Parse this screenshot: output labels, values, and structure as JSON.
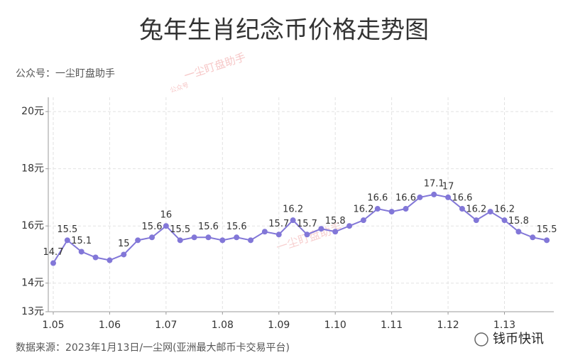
{
  "chart_data": {
    "type": "line",
    "title": "兔年生肖纪念币价格走势图",
    "subtitle": "公众号：一尘盯盘助手",
    "source": "数据来源：2023年1月13日/一尘网(亚洲最大邮币卡交易平台)",
    "watermarks": [
      "一尘盯盘助手",
      "公众号",
      "钱币快讯"
    ],
    "categories": [
      "1.05",
      null,
      null,
      null,
      "1.06",
      null,
      null,
      null,
      "1.07",
      null,
      null,
      null,
      "1.08",
      null,
      null,
      null,
      "1.09",
      null,
      null,
      null,
      "1.10",
      null,
      null,
      null,
      "1.11",
      null,
      null,
      null,
      "1.12",
      null,
      null,
      null,
      "1.13",
      null,
      null,
      null
    ],
    "series": [
      {
        "color": "#8277d8",
        "values": [
          14.7,
          15.5,
          15.1,
          14.9,
          14.8,
          15.0,
          15.5,
          15.6,
          16.0,
          15.5,
          15.6,
          15.6,
          15.5,
          15.6,
          15.5,
          15.8,
          15.7,
          16.2,
          15.7,
          15.9,
          15.8,
          16.0,
          16.2,
          16.6,
          16.5,
          16.6,
          17.0,
          17.1,
          17.0,
          16.6,
          16.2,
          16.5,
          16.2,
          15.8,
          15.6,
          15.5
        ],
        "value_labels": [
          "14.7",
          "15.5",
          "15.1",
          null,
          null,
          "15",
          null,
          "15.6",
          "16",
          "15.5",
          null,
          "15.6",
          null,
          "15.6",
          null,
          null,
          "15.7",
          "16.2",
          "15.7",
          null,
          "15.8",
          null,
          "16.2",
          "16.6",
          null,
          "16.6",
          null,
          "17.1",
          "17",
          "16.6",
          "16.2",
          null,
          "16.2",
          "15.8",
          null,
          "15.5"
        ]
      }
    ],
    "ylim": [
      13,
      20.5
    ],
    "yticks": [
      {
        "value": 13,
        "label": "13元"
      },
      {
        "value": 14,
        "label": "14元"
      },
      {
        "value": 16,
        "label": "16元"
      },
      {
        "value": 18,
        "label": "18元"
      },
      {
        "value": 20,
        "label": "20元"
      }
    ],
    "grid": true
  }
}
